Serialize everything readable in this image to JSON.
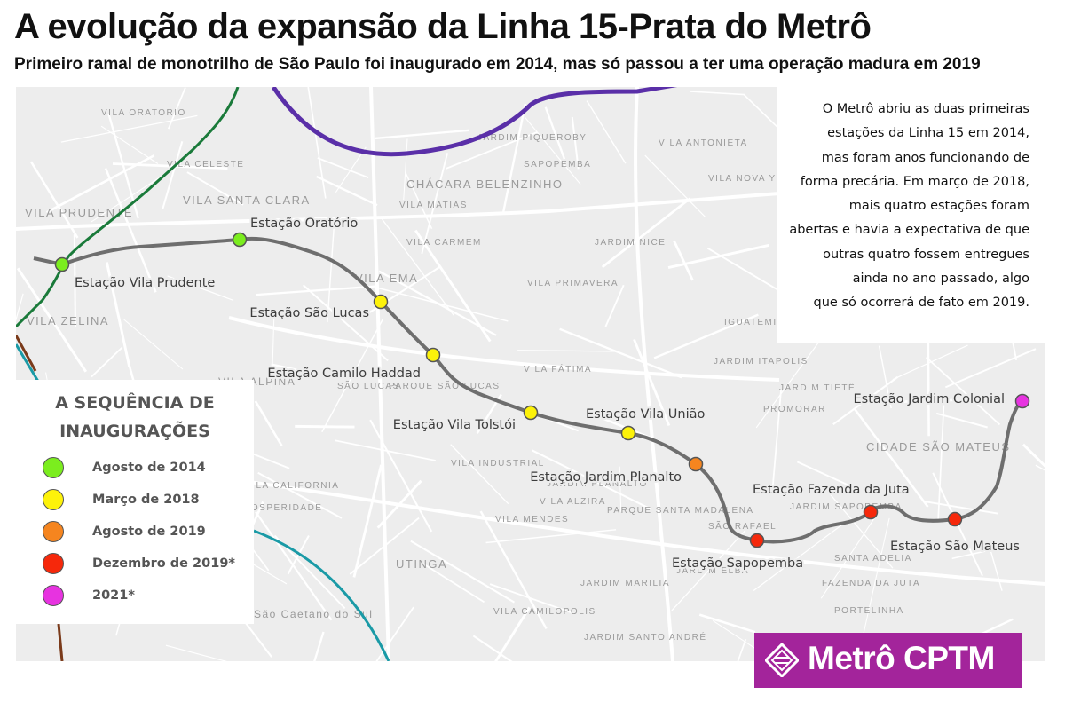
{
  "header": {
    "title": "A evolução da expansão da Linha 15-Prata do Metrô",
    "subtitle": "Primeiro ramal de monotrilho de São Paulo foi inaugurado em 2014, mas só passou a ter uma operação madura em 2019"
  },
  "info": {
    "lines": [
      "O Metrô abriu as duas primeiras",
      "estações da Linha 15 em 2014,",
      "mas foram anos funcionando de",
      "forma precária. Em março de 2018,",
      "mais quatro estações foram",
      "abertas  e havia a expectativa de  que",
      "outras quatro fossem entregues",
      "ainda no ano passado, algo",
      "que só ocorrerá de fato em 2019."
    ]
  },
  "legend": {
    "title_lines": [
      "A SEQUÊNCIA DE",
      "INAUGURAÇÕES"
    ],
    "items": [
      {
        "label": "Agosto de 2014",
        "color": "#7bed1e"
      },
      {
        "label": "Março de 2018",
        "color": "#fdf20a"
      },
      {
        "label": "Agosto de 2019",
        "color": "#f5851f"
      },
      {
        "label": "Dezembro de 2019*",
        "color": "#f6280b"
      },
      {
        "label": "2021*",
        "color": "#e733e0"
      }
    ]
  },
  "map": {
    "line_color": "#6e6e6e",
    "stations": [
      {
        "name": "Estação Vila Prudente",
        "phase": 0
      },
      {
        "name": "Estação Oratório",
        "phase": 0
      },
      {
        "name": "Estação São Lucas",
        "phase": 1
      },
      {
        "name": "Estação Camilo Haddad",
        "phase": 1
      },
      {
        "name": "Estação Vila Tolstói",
        "phase": 1
      },
      {
        "name": "Estação Vila União",
        "phase": 1
      },
      {
        "name": "Estação Jardim Planalto",
        "phase": 2
      },
      {
        "name": "Estação Sapopemba",
        "phase": 3
      },
      {
        "name": "Estação Fazenda da Juta",
        "phase": 3
      },
      {
        "name": "Estação São Mateus",
        "phase": 3
      },
      {
        "name": "Estação Jardim Colonial",
        "phase": 4
      }
    ],
    "districts": [
      "VILA PRUDENTE",
      "VILA SANTA CLARA",
      "VILA ZELINA",
      "VILA EMA",
      "CHÁCARA BELENZINHO",
      "SAPOPEMBA",
      "JARDIM ITAPOLIS",
      "CIDADE SÃO MATEUS",
      "UTINGA",
      "São Caetano do Sul",
      "VILA INDUSTRIAL",
      "VILA PRIMAVERA",
      "JARDIM TIETÊ",
      "PROMORAR",
      "SÃO LUCAS",
      "VILA ALPINA",
      "PROSPERIDADE",
      "PARQUE SÃO LUCAS",
      "JARDIM SAPOPEMBA",
      "FAZENDA DA JUTA",
      "VILA CALIFORNIA",
      "JARDIM ELBA",
      "VILA ALZIRA",
      "JARDIM PLANALTO",
      "VILA CAMILOPOLIS",
      "VILA ORATORIO",
      "VILA CELESTE",
      "VILA CARMEM",
      "JARDIM MARILIA",
      "VILA MATIAS",
      "PARQUE SANTA MADALENA",
      "SÃO RAFAEL",
      "JARDIM NICE",
      "VILA NOVA YORK",
      "IGUATEMI",
      "JARDIM SANTO ANDRÉ",
      "VILA MENDES",
      "SANTA ADELIA",
      "PORTELINHA",
      "VILA FÁTIMA",
      "JARDIM PIQUEROBY",
      "VILA ANTONIETA"
    ]
  },
  "logo": {
    "text": "Metrô CPTM",
    "color": "#a3249b"
  }
}
